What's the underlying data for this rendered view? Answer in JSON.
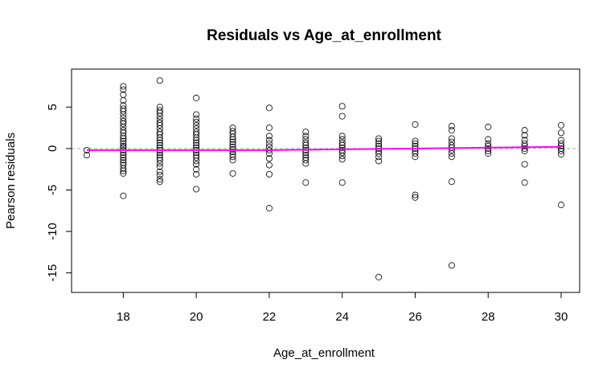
{
  "chart_data": {
    "type": "scatter",
    "title": "Residuals vs Age_at_enrollment",
    "xlabel": "Age_at_enrollment",
    "ylabel": "Pearson residuals",
    "xlim": [
      17,
      30
    ],
    "ylim": [
      -16,
      9
    ],
    "x_ticks": [
      18,
      20,
      22,
      24,
      26,
      28,
      30
    ],
    "y_ticks": [
      -15,
      -10,
      -5,
      0,
      5
    ],
    "reference_line": {
      "y": 0,
      "style": "dashed",
      "color": "#aaaaaa"
    },
    "smooth_line": {
      "color": "#ff00ff",
      "x": [
        17,
        18,
        19,
        20,
        21,
        22,
        23,
        24,
        25,
        26,
        27,
        28,
        29,
        30
      ],
      "y": [
        -0.2,
        -0.2,
        -0.2,
        -0.2,
        -0.2,
        -0.2,
        -0.15,
        -0.1,
        -0.05,
        0.0,
        0.05,
        0.1,
        0.15,
        0.2
      ]
    },
    "series": [
      {
        "marker": "open-circle",
        "color": "#000000",
        "points": [
          [
            17,
            -0.2
          ],
          [
            17,
            -0.8
          ],
          [
            18,
            7.5
          ],
          [
            18,
            7.1
          ],
          [
            18,
            6.5
          ],
          [
            18,
            5.8
          ],
          [
            18,
            5.2
          ],
          [
            18,
            4.8
          ],
          [
            18,
            4.5
          ],
          [
            18,
            4.1
          ],
          [
            18,
            3.7
          ],
          [
            18,
            3.3
          ],
          [
            18,
            3.0
          ],
          [
            18,
            2.6
          ],
          [
            18,
            2.2
          ],
          [
            18,
            1.9
          ],
          [
            18,
            1.5
          ],
          [
            18,
            1.2
          ],
          [
            18,
            0.9
          ],
          [
            18,
            0.6
          ],
          [
            18,
            0.3
          ],
          [
            18,
            0.1
          ],
          [
            18,
            -0.2
          ],
          [
            18,
            -0.5
          ],
          [
            18,
            -0.8
          ],
          [
            18,
            -1.1
          ],
          [
            18,
            -1.4
          ],
          [
            18,
            -1.7
          ],
          [
            18,
            -2.0
          ],
          [
            18,
            -2.4
          ],
          [
            18,
            -2.7
          ],
          [
            18,
            -3.0
          ],
          [
            18,
            -5.7
          ],
          [
            19,
            8.2
          ],
          [
            19,
            5.0
          ],
          [
            19,
            4.6
          ],
          [
            19,
            4.3
          ],
          [
            19,
            3.9
          ],
          [
            19,
            3.5
          ],
          [
            19,
            3.1
          ],
          [
            19,
            2.8
          ],
          [
            19,
            2.4
          ],
          [
            19,
            2.0
          ],
          [
            19,
            1.7
          ],
          [
            19,
            1.3
          ],
          [
            19,
            1.0
          ],
          [
            19,
            0.7
          ],
          [
            19,
            0.4
          ],
          [
            19,
            0.1
          ],
          [
            19,
            -0.2
          ],
          [
            19,
            -0.5
          ],
          [
            19,
            -0.8
          ],
          [
            19,
            -1.1
          ],
          [
            19,
            -1.4
          ],
          [
            19,
            -1.8
          ],
          [
            19,
            -2.2
          ],
          [
            19,
            -2.8
          ],
          [
            19,
            -3.2
          ],
          [
            19,
            -3.7
          ],
          [
            19,
            -4.0
          ],
          [
            20,
            6.1
          ],
          [
            20,
            4.1
          ],
          [
            20,
            3.6
          ],
          [
            20,
            3.2
          ],
          [
            20,
            2.8
          ],
          [
            20,
            2.4
          ],
          [
            20,
            2.0
          ],
          [
            20,
            1.7
          ],
          [
            20,
            1.3
          ],
          [
            20,
            1.0
          ],
          [
            20,
            0.7
          ],
          [
            20,
            0.4
          ],
          [
            20,
            0.1
          ],
          [
            20,
            -0.2
          ],
          [
            20,
            -0.5
          ],
          [
            20,
            -0.8
          ],
          [
            20,
            -1.1
          ],
          [
            20,
            -1.5
          ],
          [
            20,
            -1.9
          ],
          [
            20,
            -2.5
          ],
          [
            20,
            -3.1
          ],
          [
            20,
            -4.9
          ],
          [
            21,
            2.5
          ],
          [
            21,
            2.1
          ],
          [
            21,
            1.8
          ],
          [
            21,
            1.4
          ],
          [
            21,
            1.1
          ],
          [
            21,
            0.8
          ],
          [
            21,
            0.5
          ],
          [
            21,
            0.2
          ],
          [
            21,
            -0.1
          ],
          [
            21,
            -0.4
          ],
          [
            21,
            -0.7
          ],
          [
            21,
            -1.0
          ],
          [
            21,
            -1.4
          ],
          [
            21,
            -3.0
          ],
          [
            22,
            4.9
          ],
          [
            22,
            2.5
          ],
          [
            22,
            1.5
          ],
          [
            22,
            1.0
          ],
          [
            22,
            0.6
          ],
          [
            22,
            0.2
          ],
          [
            22,
            -0.2
          ],
          [
            22,
            -0.6
          ],
          [
            22,
            -1.2
          ],
          [
            22,
            -2.0
          ],
          [
            22,
            -3.1
          ],
          [
            22,
            -7.2
          ],
          [
            23,
            2.0
          ],
          [
            23,
            1.5
          ],
          [
            23,
            1.1
          ],
          [
            23,
            0.7
          ],
          [
            23,
            0.4
          ],
          [
            23,
            0.1
          ],
          [
            23,
            -0.2
          ],
          [
            23,
            -0.5
          ],
          [
            23,
            -0.8
          ],
          [
            23,
            -1.1
          ],
          [
            23,
            -1.4
          ],
          [
            23,
            -1.8
          ],
          [
            23,
            -4.1
          ],
          [
            24,
            5.1
          ],
          [
            24,
            3.9
          ],
          [
            24,
            1.5
          ],
          [
            24,
            1.1
          ],
          [
            24,
            0.7
          ],
          [
            24,
            0.4
          ],
          [
            24,
            0.1
          ],
          [
            24,
            -0.2
          ],
          [
            24,
            -0.5
          ],
          [
            24,
            -0.9
          ],
          [
            24,
            -1.3
          ],
          [
            24,
            -4.1
          ],
          [
            25,
            1.2
          ],
          [
            25,
            0.9
          ],
          [
            25,
            0.6
          ],
          [
            25,
            0.3
          ],
          [
            25,
            0.0
          ],
          [
            25,
            -0.3
          ],
          [
            25,
            -0.6
          ],
          [
            25,
            -1.0
          ],
          [
            25,
            -1.5
          ],
          [
            25,
            -15.5
          ],
          [
            26,
            2.9
          ],
          [
            26,
            0.9
          ],
          [
            26,
            0.6
          ],
          [
            26,
            0.3
          ],
          [
            26,
            0.0
          ],
          [
            26,
            -0.3
          ],
          [
            26,
            -0.6
          ],
          [
            26,
            -1.0
          ],
          [
            26,
            -5.6
          ],
          [
            26,
            -5.9
          ],
          [
            27,
            2.7
          ],
          [
            27,
            2.2
          ],
          [
            27,
            1.2
          ],
          [
            27,
            0.8
          ],
          [
            27,
            0.4
          ],
          [
            27,
            0.1
          ],
          [
            27,
            -0.2
          ],
          [
            27,
            -0.6
          ],
          [
            27,
            -1.0
          ],
          [
            27,
            -4.0
          ],
          [
            27,
            -14.1
          ],
          [
            28,
            2.6
          ],
          [
            28,
            1.1
          ],
          [
            28,
            0.6
          ],
          [
            28,
            0.3
          ],
          [
            28,
            0.0
          ],
          [
            28,
            -0.3
          ],
          [
            28,
            -0.6
          ],
          [
            29,
            2.2
          ],
          [
            29,
            1.6
          ],
          [
            29,
            1.0
          ],
          [
            29,
            0.6
          ],
          [
            29,
            0.3
          ],
          [
            29,
            0.0
          ],
          [
            29,
            -0.3
          ],
          [
            29,
            -1.9
          ],
          [
            29,
            -4.1
          ],
          [
            30,
            2.8
          ],
          [
            30,
            1.9
          ],
          [
            30,
            1.0
          ],
          [
            30,
            0.6
          ],
          [
            30,
            0.3
          ],
          [
            30,
            0.0
          ],
          [
            30,
            -0.3
          ],
          [
            30,
            -0.7
          ],
          [
            30,
            -6.8
          ]
        ]
      }
    ]
  }
}
